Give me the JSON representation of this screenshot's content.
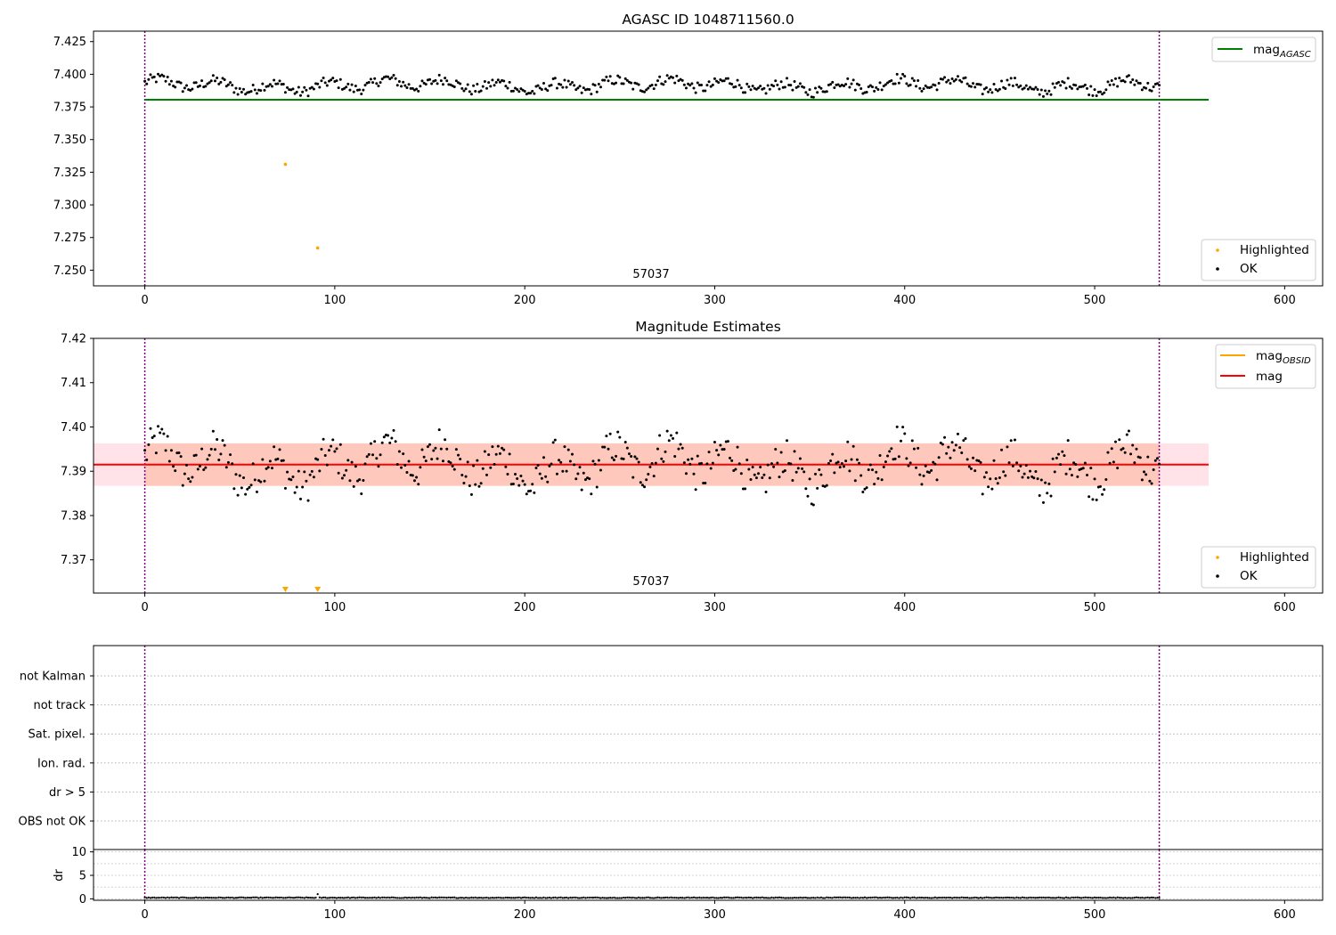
{
  "chart_data": [
    {
      "type": "scatter",
      "title": "AGASC ID 1048711560.0",
      "xlim": [
        -27,
        620
      ],
      "ylim": [
        7.238,
        7.433
      ],
      "xticks": [
        0,
        100,
        200,
        300,
        400,
        500,
        600
      ],
      "xtick_labels": [
        "0",
        "100",
        "200",
        "300",
        "400",
        "500",
        "600"
      ],
      "yticks": [
        7.25,
        7.275,
        7.3,
        7.325,
        7.35,
        7.375,
        7.4,
        7.425
      ],
      "ytick_labels": [
        "7.250",
        "7.275",
        "7.300",
        "7.325",
        "7.350",
        "7.375",
        "7.400",
        "7.425"
      ],
      "annotation": {
        "text": "57037",
        "x": 266
      },
      "vlines": [
        0,
        534
      ],
      "hline": {
        "y": 7.3805,
        "x0": 0,
        "x1": 560,
        "color": "#008000",
        "label": "mag",
        "label_sub": "AGASC"
      },
      "highlighted": {
        "label": "Highlighted",
        "color": "#ffa500",
        "x": [
          74,
          91
        ],
        "y": [
          7.331,
          7.267
        ]
      },
      "ok": {
        "label": "OK",
        "color": "#000000",
        "n": 535,
        "x_start": 0,
        "x_step": 1,
        "center": 7.3915,
        "amplitude": 0.0055
      },
      "legend_position": [
        "upper right",
        "lower right"
      ]
    },
    {
      "type": "scatter",
      "title": "Magnitude Estimates",
      "xlim": [
        -27,
        620
      ],
      "ylim": [
        7.3625,
        7.42
      ],
      "xticks": [
        0,
        100,
        200,
        300,
        400,
        500,
        600
      ],
      "xtick_labels": [
        "0",
        "100",
        "200",
        "300",
        "400",
        "500",
        "600"
      ],
      "yticks": [
        7.37,
        7.38,
        7.39,
        7.4,
        7.41,
        7.42
      ],
      "ytick_labels": [
        "7.37",
        "7.38",
        "7.39",
        "7.40",
        "7.41",
        "7.42"
      ],
      "annotation": {
        "text": "57037",
        "x": 266
      },
      "vlines": [
        0,
        534
      ],
      "band_outer": {
        "y0": 7.3867,
        "y1": 7.3963,
        "x0": -27,
        "x1": 560,
        "color": "#ffc0cb"
      },
      "band_inner": {
        "y0": 7.3867,
        "y1": 7.3963,
        "x0": 0,
        "x1": 534,
        "color": "#ffa07a"
      },
      "lines": [
        {
          "label": "mag",
          "label_sub": "OBSID",
          "color": "#ffa500"
        },
        {
          "label": "mag",
          "color": "#ff0000",
          "y": 7.3915,
          "x0": -27,
          "x1": 560
        }
      ],
      "highlighted": {
        "label": "Highlighted",
        "color": "#ffa500",
        "x": [
          74,
          91
        ],
        "marker": "triangle-down"
      },
      "ok": {
        "label": "OK",
        "color": "#000000"
      },
      "legend_position": [
        "upper right",
        "lower right"
      ]
    },
    {
      "type": "scatter",
      "xlim": [
        -27,
        620
      ],
      "flag_labels": [
        "not Kalman",
        "not track",
        "Sat. pixel.",
        "Ion. rad.",
        "dr > 5",
        "OBS not OK"
      ],
      "vlines": [
        0,
        534
      ]
    },
    {
      "type": "scatter",
      "ylabel": "dr",
      "xlim": [
        -27,
        620
      ],
      "ylim": [
        -0.3,
        10.5
      ],
      "xticks": [
        0,
        100,
        200,
        300,
        400,
        500,
        600
      ],
      "xtick_labels": [
        "0",
        "100",
        "200",
        "300",
        "400",
        "500",
        "600"
      ],
      "yticks": [
        0,
        5,
        10
      ],
      "ytick_labels": [
        "0",
        "5",
        "10"
      ],
      "vlines": [
        0,
        534
      ],
      "points": {
        "n": 535,
        "typical": 0.25,
        "outlier": {
          "x": 91,
          "y": 1.0
        }
      }
    }
  ]
}
